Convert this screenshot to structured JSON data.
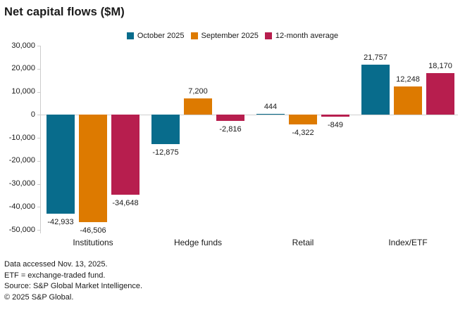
{
  "title": "Net capital flows ($M)",
  "chart_data": {
    "type": "bar",
    "title": "Net capital flows ($M)",
    "categories": [
      "Institutions",
      "Hedge funds",
      "Retail",
      "Index/ETF"
    ],
    "series": [
      {
        "name": "October 2025",
        "color": "#086C8C",
        "values": [
          -42933,
          -12875,
          444,
          21757
        ]
      },
      {
        "name": "September 2025",
        "color": "#DD7A00",
        "values": [
          -46506,
          7200,
          -4322,
          12248
        ]
      },
      {
        "name": "12-month average",
        "color": "#B71E4E",
        "values": [
          -34648,
          -2816,
          -849,
          18170
        ]
      }
    ],
    "xlabel": "",
    "ylabel": "",
    "ylim": [
      -50000,
      30000
    ],
    "ytick_step": 10000,
    "yticks": [
      30000,
      20000,
      10000,
      0,
      -10000,
      -20000,
      -30000,
      -40000,
      -50000
    ],
    "grid": "zero-line-only",
    "legend_position": "top-center",
    "data_labels": true,
    "axis_color": "#cccccc",
    "text_color": "#1a1a1a"
  },
  "footer": {
    "lines": [
      "Data accessed Nov. 13, 2025.",
      "ETF = exchange-traded fund.",
      "Source: S&P Global Market Intelligence.",
      "© 2025 S&P Global."
    ]
  }
}
